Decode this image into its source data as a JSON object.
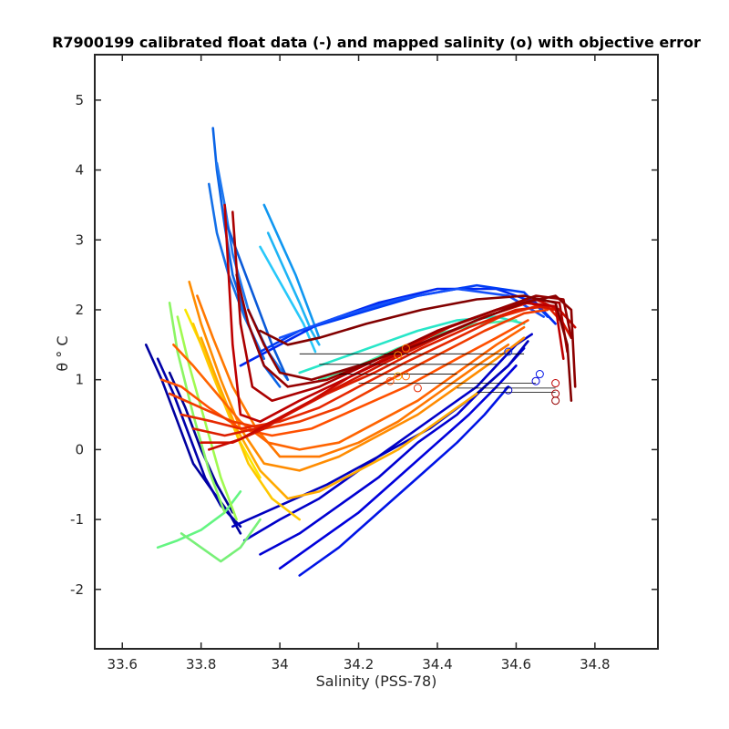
{
  "chart_data": {
    "type": "line",
    "title": "R7900199 calibrated float data (-) and mapped salinity (o) with objective error",
    "xlabel": "Salinity (PSS-78)",
    "ylabel": "θ ° C",
    "xlim": [
      33.53,
      34.96
    ],
    "ylim": [
      -2.85,
      5.65
    ],
    "x_ticks": [
      33.6,
      33.8,
      34.0,
      34.2,
      34.4,
      34.6,
      34.8
    ],
    "x_tick_labels": [
      "33.6",
      "33.8",
      "34",
      "34.2",
      "34.4",
      "34.6",
      "34.8"
    ],
    "y_ticks": [
      -2,
      -1,
      0,
      1,
      2,
      3,
      4,
      5
    ],
    "y_tick_labels": [
      "-2",
      "-1",
      "0",
      "1",
      "2",
      "3",
      "4",
      "5"
    ],
    "grid": false,
    "legend": "none",
    "colormap": "jet",
    "series": [
      {
        "color": "#0a64e6",
        "x": [
          33.83,
          33.84,
          33.86,
          33.88,
          33.92,
          33.96,
          34.0
        ],
        "y": [
          4.6,
          4.0,
          3.2,
          2.5,
          1.8,
          1.2,
          0.9
        ]
      },
      {
        "color": "#1e78f0",
        "x": [
          33.84,
          33.86,
          33.88,
          33.92,
          33.97,
          34.02
        ],
        "y": [
          4.1,
          3.5,
          2.8,
          2.0,
          1.4,
          1.0
        ]
      },
      {
        "color": "#1470e8",
        "x": [
          33.82,
          33.84,
          33.87,
          33.91,
          33.96
        ],
        "y": [
          3.8,
          3.1,
          2.5,
          1.9,
          1.3
        ]
      },
      {
        "color": "#0a5ad8",
        "x": [
          33.86,
          33.9,
          33.94,
          33.98,
          34.02
        ],
        "y": [
          3.3,
          2.7,
          2.1,
          1.5,
          1.0
        ]
      },
      {
        "color": "#0f96f0",
        "x": [
          33.96,
          34.0,
          34.04,
          34.08,
          34.1
        ],
        "y": [
          3.5,
          3.0,
          2.5,
          1.9,
          1.6
        ]
      },
      {
        "color": "#1eb4f5",
        "x": [
          33.97,
          34.01,
          34.05,
          34.08,
          34.1
        ],
        "y": [
          3.1,
          2.6,
          2.1,
          1.7,
          1.5
        ]
      },
      {
        "color": "#28c8fa",
        "x": [
          33.95,
          33.99,
          34.03,
          34.06,
          34.09
        ],
        "y": [
          2.9,
          2.5,
          2.1,
          1.8,
          1.4
        ]
      },
      {
        "color": "#0000a0",
        "x": [
          33.66,
          33.7,
          33.74,
          33.78,
          33.83,
          33.87,
          33.9
        ],
        "y": [
          1.5,
          1.0,
          0.4,
          -0.2,
          -0.6,
          -0.9,
          -1.2
        ]
      },
      {
        "color": "#0000aa",
        "x": [
          33.69,
          33.73,
          33.77,
          33.81,
          33.85,
          33.9
        ],
        "y": [
          1.3,
          0.8,
          0.2,
          -0.4,
          -0.8,
          -1.1
        ]
      },
      {
        "color": "#000096",
        "x": [
          33.72,
          33.76,
          33.8,
          33.84,
          33.88
        ],
        "y": [
          1.1,
          0.6,
          0.0,
          -0.5,
          -0.9
        ]
      },
      {
        "color": "#0000c8",
        "x": [
          33.91,
          34.0,
          34.1,
          34.2,
          34.3,
          34.4,
          34.5,
          34.55,
          34.6,
          34.64
        ],
        "y": [
          -1.3,
          -1.0,
          -0.7,
          -0.3,
          0.1,
          0.5,
          0.9,
          1.2,
          1.5,
          1.65
        ]
      },
      {
        "color": "#0000d2",
        "x": [
          33.95,
          34.05,
          34.15,
          34.25,
          34.35,
          34.45,
          34.52,
          34.58,
          34.62
        ],
        "y": [
          -1.5,
          -1.2,
          -0.8,
          -0.4,
          0.1,
          0.5,
          0.9,
          1.2,
          1.45
        ]
      },
      {
        "color": "#0000dc",
        "x": [
          34.0,
          34.1,
          34.2,
          34.3,
          34.4,
          34.48,
          34.55,
          34.6
        ],
        "y": [
          -1.7,
          -1.3,
          -0.9,
          -0.4,
          0.1,
          0.5,
          0.9,
          1.2
        ]
      },
      {
        "color": "#0014e6",
        "x": [
          34.05,
          34.15,
          34.25,
          34.35,
          34.45,
          34.52,
          34.58
        ],
        "y": [
          -1.8,
          -1.4,
          -0.9,
          -0.4,
          0.1,
          0.5,
          0.9
        ]
      },
      {
        "color": "#0000be",
        "x": [
          33.88,
          34.0,
          34.12,
          34.25,
          34.38,
          34.5,
          34.58,
          34.63
        ],
        "y": [
          -1.1,
          -0.8,
          -0.5,
          -0.1,
          0.3,
          0.8,
          1.2,
          1.55
        ]
      },
      {
        "color": "#0028f0",
        "x": [
          33.9,
          34.0,
          34.1,
          34.25,
          34.4,
          34.55,
          34.65,
          34.7
        ],
        "y": [
          1.2,
          1.5,
          1.8,
          2.1,
          2.3,
          2.3,
          2.1,
          1.8
        ]
      },
      {
        "color": "#003cf5",
        "x": [
          33.95,
          34.05,
          34.2,
          34.35,
          34.5,
          34.62,
          34.68
        ],
        "y": [
          1.4,
          1.7,
          1.95,
          2.2,
          2.35,
          2.25,
          1.9
        ]
      },
      {
        "color": "#1450fa",
        "x": [
          34.0,
          34.15,
          34.3,
          34.45,
          34.58,
          34.67
        ],
        "y": [
          1.6,
          1.9,
          2.15,
          2.3,
          2.2,
          1.9
        ]
      },
      {
        "color": "#28e6c8",
        "x": [
          34.05,
          34.15,
          34.25,
          34.35,
          34.45,
          34.55,
          34.62
        ],
        "y": [
          1.1,
          1.3,
          1.5,
          1.7,
          1.85,
          1.9,
          1.8
        ]
      },
      {
        "color": "#46f0aa",
        "x": [
          34.1,
          34.2,
          34.3,
          34.4,
          34.5,
          34.6
        ],
        "y": [
          1.0,
          1.2,
          1.45,
          1.65,
          1.8,
          1.85
        ]
      },
      {
        "color": "#64f582",
        "x": [
          33.69,
          33.74,
          33.8,
          33.86,
          33.9
        ],
        "y": [
          -1.4,
          -1.3,
          -1.15,
          -0.9,
          -0.6
        ]
      },
      {
        "color": "#78f078",
        "x": [
          33.75,
          33.8,
          33.85,
          33.9,
          33.95
        ],
        "y": [
          -1.2,
          -1.4,
          -1.6,
          -1.4,
          -1.0
        ]
      },
      {
        "color": "#8cf564",
        "x": [
          33.72,
          33.74,
          33.78,
          33.82,
          33.86
        ],
        "y": [
          2.1,
          1.4,
          0.5,
          -0.3,
          -0.9
        ]
      },
      {
        "color": "#a0fa50",
        "x": [
          33.74,
          33.77,
          33.81,
          33.85,
          33.89
        ],
        "y": [
          1.9,
          1.2,
          0.4,
          -0.4,
          -1.0
        ]
      },
      {
        "color": "#fae600",
        "x": [
          33.76,
          33.8,
          33.85,
          33.9,
          33.95
        ],
        "y": [
          2.0,
          1.5,
          0.8,
          0.1,
          -0.4
        ]
      },
      {
        "color": "#ffc800",
        "x": [
          33.78,
          33.82,
          33.87,
          33.92,
          33.98,
          34.05
        ],
        "y": [
          1.8,
          1.2,
          0.5,
          -0.2,
          -0.7,
          -1.0
        ]
      },
      {
        "color": "#ffaa00",
        "x": [
          33.8,
          33.84,
          33.89,
          33.95,
          34.02,
          34.1,
          34.2,
          34.3,
          34.4,
          34.5
        ],
        "y": [
          1.6,
          1.0,
          0.3,
          -0.3,
          -0.7,
          -0.6,
          -0.3,
          0.0,
          0.4,
          0.8
        ]
      },
      {
        "color": "#ff8c00",
        "x": [
          33.77,
          33.8,
          33.85,
          33.9,
          33.96,
          34.05,
          34.15,
          34.25,
          34.35,
          34.45,
          34.55,
          34.62
        ],
        "y": [
          2.4,
          1.8,
          1.0,
          0.3,
          -0.2,
          -0.3,
          -0.1,
          0.2,
          0.5,
          0.9,
          1.3,
          1.6
        ]
      },
      {
        "color": "#ff7800",
        "x": [
          33.79,
          33.83,
          33.88,
          33.94,
          34.0,
          34.1,
          34.2,
          34.3,
          34.4,
          34.5,
          34.58
        ],
        "y": [
          2.2,
          1.6,
          0.9,
          0.3,
          -0.1,
          -0.1,
          0.1,
          0.4,
          0.8,
          1.2,
          1.5
        ]
      },
      {
        "color": "#ff6400",
        "x": [
          33.73,
          33.78,
          33.84,
          33.9,
          33.97,
          34.05,
          34.15,
          34.25,
          34.35,
          34.45,
          34.55,
          34.62
        ],
        "y": [
          1.5,
          1.2,
          0.8,
          0.4,
          0.1,
          0.0,
          0.1,
          0.4,
          0.7,
          1.1,
          1.5,
          1.75
        ]
      },
      {
        "color": "#ff5000",
        "x": [
          33.7,
          33.75,
          33.82,
          33.9,
          33.98,
          34.08,
          34.2,
          34.32,
          34.45,
          34.55,
          34.63
        ],
        "y": [
          1.0,
          0.9,
          0.6,
          0.3,
          0.2,
          0.3,
          0.6,
          0.9,
          1.3,
          1.6,
          1.85
        ]
      },
      {
        "color": "#f03c00",
        "x": [
          33.72,
          33.8,
          33.88,
          33.96,
          34.05,
          34.15,
          34.28,
          34.4,
          34.52,
          34.62,
          34.68
        ],
        "y": [
          0.8,
          0.6,
          0.4,
          0.3,
          0.4,
          0.6,
          1.0,
          1.35,
          1.7,
          1.95,
          2.0
        ]
      },
      {
        "color": "#e62800",
        "x": [
          33.75,
          33.83,
          33.9,
          34.0,
          34.1,
          34.2,
          34.32,
          34.45,
          34.56,
          34.65,
          34.7
        ],
        "y": [
          0.5,
          0.4,
          0.3,
          0.4,
          0.6,
          0.9,
          1.25,
          1.6,
          1.9,
          2.05,
          2.0
        ]
      },
      {
        "color": "#dc1e00",
        "x": [
          33.78,
          33.86,
          33.94,
          34.02,
          34.12,
          34.24,
          34.36,
          34.48,
          34.6,
          34.68,
          34.72
        ],
        "y": [
          0.3,
          0.2,
          0.3,
          0.5,
          0.8,
          1.1,
          1.45,
          1.75,
          2.0,
          2.05,
          1.8
        ]
      },
      {
        "color": "#d21400",
        "x": [
          33.8,
          33.88,
          33.96,
          34.05,
          34.15,
          34.27,
          34.4,
          34.52,
          34.63,
          34.7,
          34.74
        ],
        "y": [
          0.1,
          0.1,
          0.3,
          0.6,
          0.9,
          1.25,
          1.6,
          1.9,
          2.1,
          2.0,
          1.6
        ]
      },
      {
        "color": "#c80a00",
        "x": [
          33.82,
          33.9,
          33.98,
          34.08,
          34.18,
          34.3,
          34.43,
          34.55,
          34.65,
          34.71,
          34.75
        ],
        "y": [
          0.0,
          0.15,
          0.4,
          0.7,
          1.05,
          1.4,
          1.75,
          2.0,
          2.15,
          2.0,
          1.75
        ]
      },
      {
        "color": "#be0000",
        "x": [
          33.86,
          33.87,
          33.88,
          33.9,
          33.95,
          34.05,
          34.2,
          34.35,
          34.5,
          34.62,
          34.7,
          34.72
        ],
        "y": [
          3.5,
          2.5,
          1.5,
          0.5,
          0.4,
          0.7,
          1.1,
          1.5,
          1.85,
          2.1,
          2.05,
          1.3
        ]
      },
      {
        "color": "#aa0000",
        "x": [
          33.88,
          33.89,
          33.9,
          33.93,
          33.98,
          34.1,
          34.25,
          34.4,
          34.55,
          34.65,
          34.71,
          34.73
        ],
        "y": [
          3.4,
          2.6,
          1.8,
          0.9,
          0.7,
          0.9,
          1.3,
          1.7,
          2.0,
          2.15,
          2.1,
          1.4
        ]
      },
      {
        "color": "#960000",
        "x": [
          33.89,
          33.92,
          33.96,
          34.02,
          34.12,
          34.25,
          34.4,
          34.55,
          34.65,
          34.72,
          34.74
        ],
        "y": [
          2.5,
          1.8,
          1.2,
          0.9,
          1.0,
          1.3,
          1.7,
          2.0,
          2.2,
          2.15,
          1.6
        ]
      },
      {
        "color": "#8c0000",
        "x": [
          33.92,
          33.96,
          34.0,
          34.08,
          34.2,
          34.35,
          34.5,
          34.62,
          34.7,
          34.74,
          34.75
        ],
        "y": [
          2.0,
          1.5,
          1.1,
          1.0,
          1.2,
          1.5,
          1.85,
          2.1,
          2.2,
          2.0,
          0.9
        ]
      },
      {
        "color": "#820000",
        "x": [
          33.95,
          34.02,
          34.1,
          34.22,
          34.36,
          34.5,
          34.62,
          34.7,
          34.73,
          34.74
        ],
        "y": [
          1.7,
          1.5,
          1.6,
          1.8,
          2.0,
          2.15,
          2.2,
          2.1,
          1.5,
          0.7
        ]
      }
    ],
    "mapped_salinity": {
      "marker": "o",
      "points": [
        {
          "x": 34.32,
          "y": 1.45,
          "color": "#ff7800"
        },
        {
          "x": 34.3,
          "y": 1.35,
          "color": "#ff8c00"
        },
        {
          "x": 34.3,
          "y": 1.05,
          "color": "#ffaa00"
        },
        {
          "x": 34.32,
          "y": 1.05,
          "color": "#ff6400"
        },
        {
          "x": 34.28,
          "y": 0.98,
          "color": "#ff5000"
        },
        {
          "x": 34.35,
          "y": 0.88,
          "color": "#e62800"
        },
        {
          "x": 34.58,
          "y": 0.85,
          "color": "#0000c8"
        },
        {
          "x": 34.65,
          "y": 0.98,
          "color": "#0000dc"
        },
        {
          "x": 34.66,
          "y": 1.08,
          "color": "#0014e6"
        },
        {
          "x": 34.58,
          "y": 1.4,
          "color": "#0028f0"
        },
        {
          "x": 34.7,
          "y": 0.95,
          "color": "#be0000"
        },
        {
          "x": 34.7,
          "y": 0.8,
          "color": "#aa0000"
        },
        {
          "x": 34.7,
          "y": 0.7,
          "color": "#960000"
        }
      ]
    },
    "objective_error_bars": [
      {
        "y": 1.37,
        "xmin": 34.05,
        "xmax": 34.62,
        "color": "#000000"
      },
      {
        "y": 1.22,
        "xmin": 34.1,
        "xmax": 34.55,
        "color": "#000000"
      },
      {
        "y": 1.08,
        "xmin": 34.15,
        "xmax": 34.45,
        "color": "#000000"
      },
      {
        "y": 0.95,
        "xmin": 34.2,
        "xmax": 34.65,
        "color": "#000000"
      },
      {
        "y": 0.88,
        "xmin": 34.45,
        "xmax": 34.7,
        "color": "#000000"
      },
      {
        "y": 0.82,
        "xmin": 34.5,
        "xmax": 34.7,
        "color": "#000000"
      }
    ]
  }
}
